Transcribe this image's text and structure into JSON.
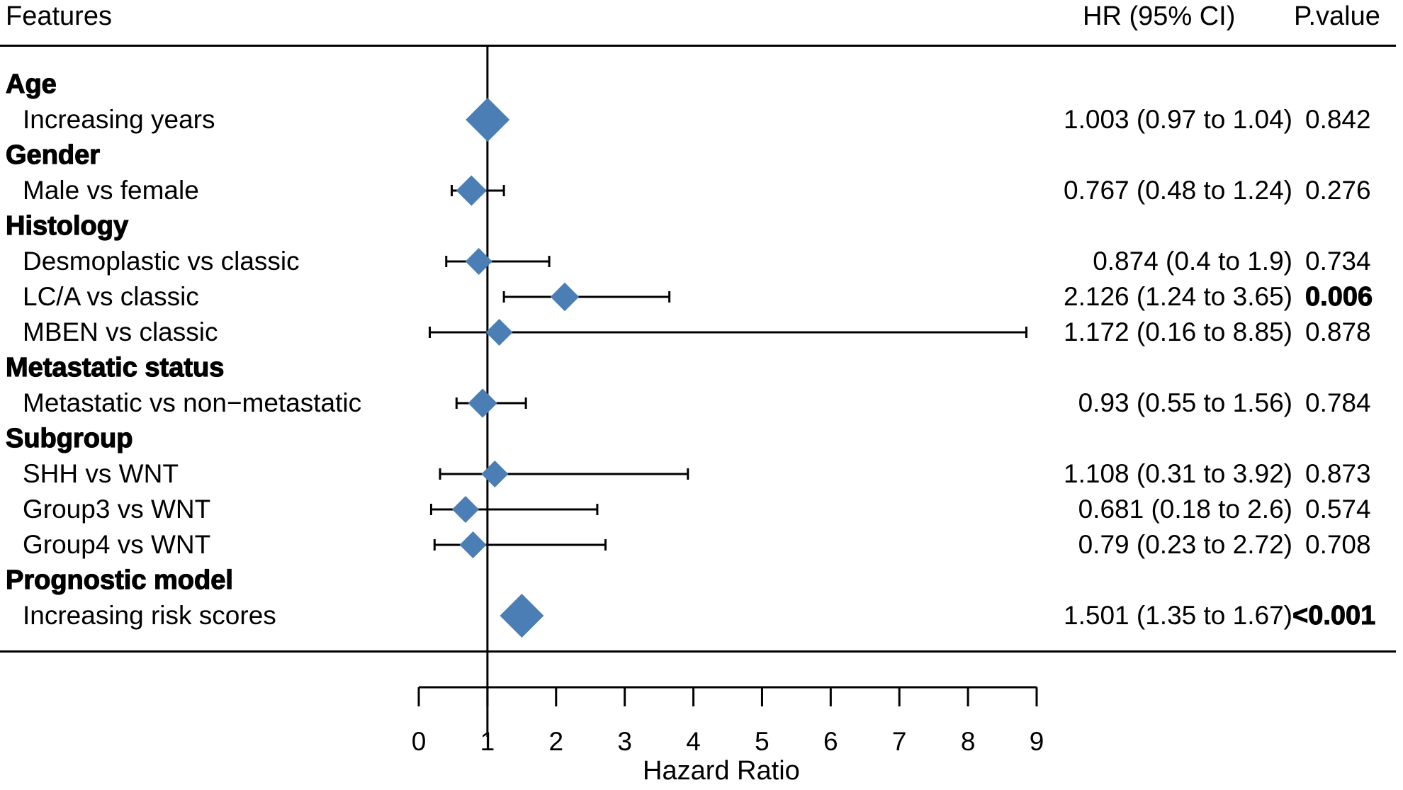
{
  "header": {
    "features": "Features",
    "hr_ci": "HR (95% CI)",
    "p_value": "P.value"
  },
  "chart_data": {
    "type": "forest",
    "xlabel": "Hazard Ratio",
    "xlim": [
      0,
      9
    ],
    "xticks": [
      0,
      1,
      2,
      3,
      4,
      5,
      6,
      7,
      8,
      9
    ],
    "reference_line": 1,
    "marker_color": "#4A7EB5",
    "rows": [
      {
        "kind": "group",
        "label": "Age"
      },
      {
        "kind": "item",
        "label": "Increasing years",
        "hr": 1.003,
        "lower": 0.97,
        "upper": 1.04,
        "ci_text": "1.003 (0.97 to 1.04)",
        "p": "0.842",
        "p_bold": false
      },
      {
        "kind": "group",
        "label": "Gender"
      },
      {
        "kind": "item",
        "label": "Male vs female",
        "hr": 0.767,
        "lower": 0.48,
        "upper": 1.24,
        "ci_text": "0.767 (0.48 to 1.24)",
        "p": "0.276",
        "p_bold": false
      },
      {
        "kind": "group",
        "label": "Histology"
      },
      {
        "kind": "item",
        "label": "Desmoplastic vs classic",
        "hr": 0.874,
        "lower": 0.4,
        "upper": 1.9,
        "ci_text": "0.874 (0.4 to 1.9)",
        "p": "0.734",
        "p_bold": false
      },
      {
        "kind": "item",
        "label": "LC/A vs classic",
        "hr": 2.126,
        "lower": 1.24,
        "upper": 3.65,
        "ci_text": "2.126 (1.24 to 3.65)",
        "p": "0.006",
        "p_bold": true
      },
      {
        "kind": "item",
        "label": "MBEN vs classic",
        "hr": 1.172,
        "lower": 0.16,
        "upper": 8.85,
        "ci_text": "1.172 (0.16 to 8.85)",
        "p": "0.878",
        "p_bold": false
      },
      {
        "kind": "group",
        "label": "Metastatic status"
      },
      {
        "kind": "item",
        "label": "Metastatic vs non−metastatic",
        "hr": 0.93,
        "lower": 0.55,
        "upper": 1.56,
        "ci_text": "0.93 (0.55 to 1.56)",
        "p": "0.784",
        "p_bold": false
      },
      {
        "kind": "group",
        "label": "Subgroup"
      },
      {
        "kind": "item",
        "label": "SHH vs WNT",
        "hr": 1.108,
        "lower": 0.31,
        "upper": 3.92,
        "ci_text": "1.108 (0.31 to 3.92)",
        "p": "0.873",
        "p_bold": false
      },
      {
        "kind": "item",
        "label": "Group3 vs WNT",
        "hr": 0.681,
        "lower": 0.18,
        "upper": 2.6,
        "ci_text": "0.681 (0.18 to 2.6)",
        "p": "0.574",
        "p_bold": false
      },
      {
        "kind": "item",
        "label": "Group4 vs WNT",
        "hr": 0.79,
        "lower": 0.23,
        "upper": 2.72,
        "ci_text": "0.79 (0.23 to 2.72)",
        "p": "0.708",
        "p_bold": false
      },
      {
        "kind": "group",
        "label": "Prognostic model"
      },
      {
        "kind": "item",
        "label": "Increasing risk scores",
        "hr": 1.501,
        "lower": 1.35,
        "upper": 1.67,
        "ci_text": "1.501 (1.35 to 1.67)",
        "p": "<0.001",
        "p_bold": true
      }
    ]
  }
}
